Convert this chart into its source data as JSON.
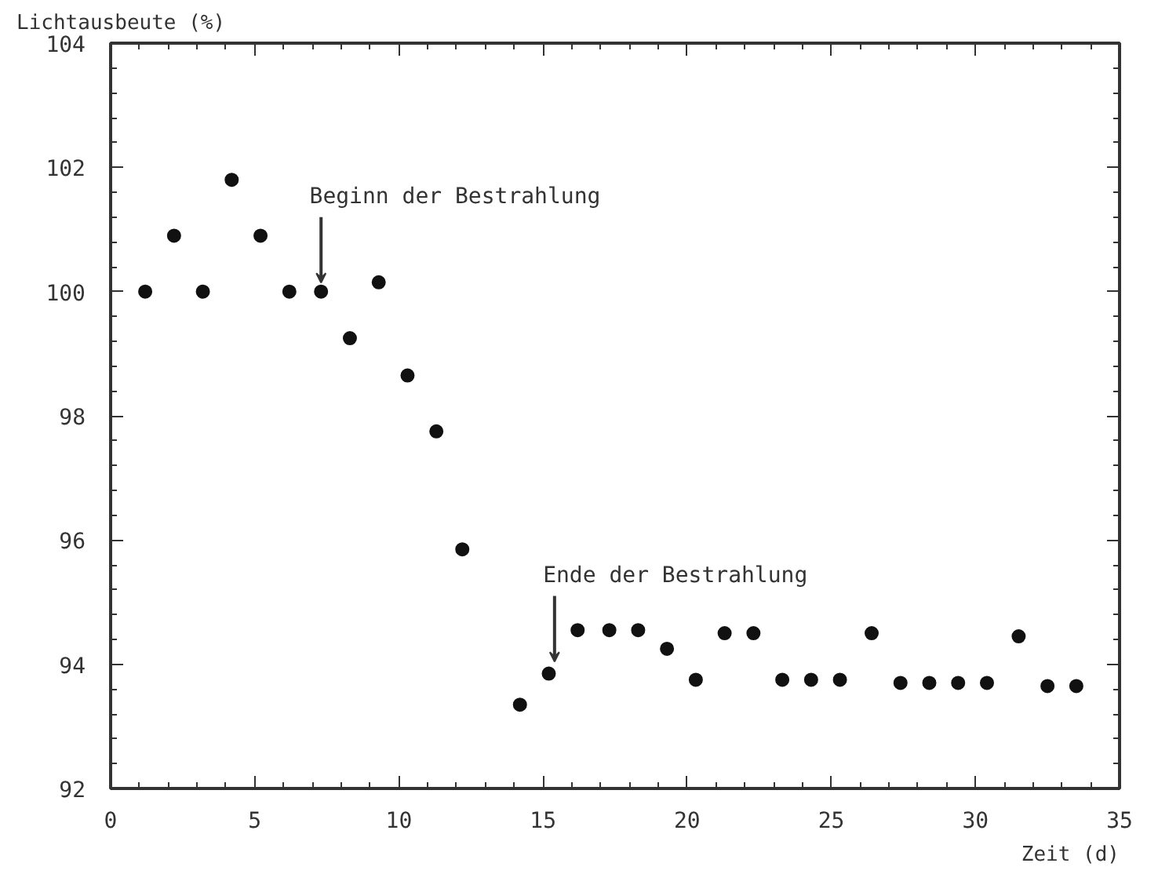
{
  "chart_data": {
    "type": "scatter",
    "xlabel": "Zeit (d)",
    "ylabel": "Lichtausbeute (%)",
    "x": [
      1.2,
      2.2,
      3.2,
      4.2,
      5.2,
      6.2,
      7.3,
      8.3,
      9.3,
      10.3,
      11.3,
      12.2,
      14.2,
      15.2,
      16.2,
      17.3,
      18.3,
      19.3,
      20.3,
      21.3,
      22.3,
      23.3,
      24.3,
      25.3,
      26.4,
      27.4,
      28.4,
      29.4,
      30.4,
      31.5,
      32.5,
      33.5
    ],
    "values": [
      100.0,
      100.9,
      100.0,
      101.8,
      100.9,
      100.0,
      100.0,
      99.25,
      100.15,
      98.65,
      97.75,
      95.85,
      93.35,
      93.85,
      94.55,
      94.55,
      94.55,
      94.25,
      93.75,
      94.5,
      94.5,
      93.75,
      93.75,
      93.75,
      94.5,
      93.7,
      93.7,
      93.7,
      93.7,
      94.45,
      93.65,
      93.65
    ],
    "color": "#111111",
    "marker": "circle",
    "grid": false,
    "xlim": [
      0,
      35
    ],
    "xticks": [
      0,
      5,
      10,
      15,
      20,
      25,
      30,
      35
    ],
    "ylim": [
      92,
      104
    ],
    "yticks": [
      92,
      94,
      96,
      98,
      100,
      102,
      104
    ],
    "annotations": [
      {
        "text": "Beginn der Bestrahlung",
        "x": 7.3,
        "y": 100.0
      },
      {
        "text": "Ende der Bestrahlung",
        "x": 15.4,
        "y": 93.9
      }
    ]
  }
}
